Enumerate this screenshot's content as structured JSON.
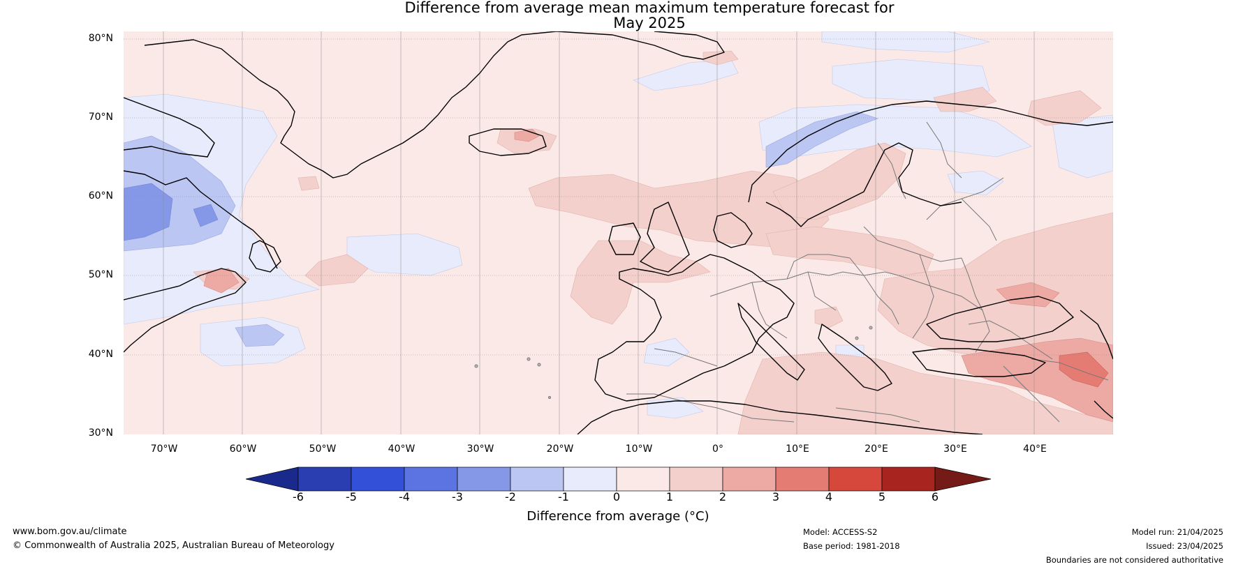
{
  "title_line1": "Difference from average mean maximum temperature forecast for",
  "title_line2": "May 2025",
  "lat_labels": [
    "80°N",
    "70°N",
    "60°N",
    "50°N",
    "40°N",
    "30°N"
  ],
  "lon_labels": [
    "70°W",
    "60°W",
    "50°W",
    "40°W",
    "30°W",
    "20°W",
    "10°W",
    "0°",
    "10°E",
    "20°E",
    "30°E",
    "40°E"
  ],
  "map": {
    "extent_lon": [
      -75,
      50
    ],
    "extent_lat": [
      30,
      81
    ],
    "gridline_color": "#888888",
    "coastline_color": "#000000",
    "border_color": "#777777"
  },
  "colorbar": {
    "title": "Difference from average (°C)",
    "tick_labels": [
      "-6",
      "-5",
      "-4",
      "-3",
      "-2",
      "-1",
      "0",
      "1",
      "2",
      "3",
      "4",
      "5",
      "6"
    ],
    "colors": [
      "#1a2a8c",
      "#2a3eb1",
      "#3350d9",
      "#5c74e2",
      "#8598e8",
      "#bcc6f2",
      "#e8ebfb",
      "#fbe9e7",
      "#f4d0cc",
      "#edaaa4",
      "#e47c74",
      "#d6473c",
      "#a8241f",
      "#741a17"
    ]
  },
  "footer": {
    "website": "www.bom.gov.au/climate",
    "copyright": "© Commonwealth of Australia 2025, Australian Bureau of Meteorology",
    "model": "Model: ACCESS-S2",
    "base_period": "Base period: 1981-2018",
    "model_run": "Model run: 21/04/2025",
    "issued": "Issued: 23/04/2025",
    "disclaimer": "Boundaries are not considered authoritative"
  }
}
